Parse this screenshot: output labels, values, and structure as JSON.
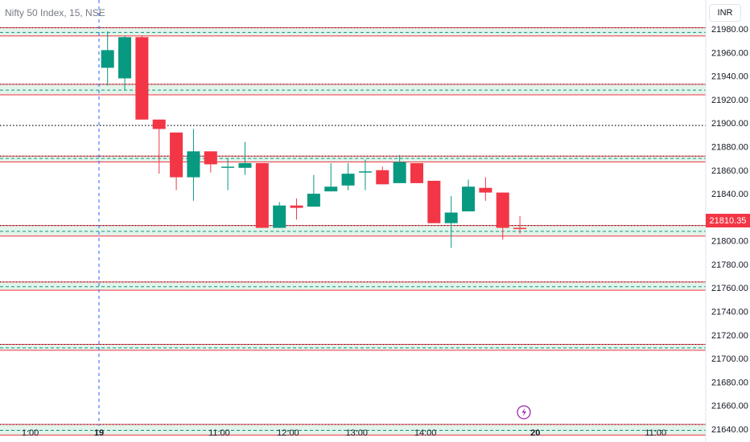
{
  "header": {
    "title": "Nifty 50 Index, 15, NSE",
    "currency_button": "INR"
  },
  "price_label": "21810.35",
  "colors": {
    "up": "#089981",
    "down": "#f23645",
    "zone_fill": "#e3f4ea",
    "zone_border": "#f23645",
    "midline": "#089981",
    "pivot_line": "#131722",
    "session_line": "#2962ff"
  },
  "events_icon": "lightning-icon",
  "chart_data": {
    "type": "candlestick",
    "title": "Nifty 50 Index, 15, NSE",
    "currency": "INR",
    "last_price": 21810.35,
    "ylim": [
      21630,
      21983
    ],
    "y_ticks": [
      21640,
      21660,
      21680,
      21700,
      21720,
      21740,
      21760,
      21780,
      21800,
      21820,
      21840,
      21860,
      21880,
      21900,
      21920,
      21940,
      21960,
      21980
    ],
    "x_ticks": [
      {
        "label": "1:00",
        "t": -4
      },
      {
        "label": "19",
        "t": 0,
        "bold": true
      },
      {
        "label": "11:00",
        "t": 7
      },
      {
        "label": "12:00",
        "t": 11
      },
      {
        "label": "13:00",
        "t": 15
      },
      {
        "label": "14:00",
        "t": 19
      },
      {
        "label": "20",
        "t": 25.4,
        "bold": true
      },
      {
        "label": "11:00",
        "t": 32.4
      }
    ],
    "session_break_t": 0,
    "candles": [
      {
        "t": 0.5,
        "o": 21947,
        "h": 21978,
        "l": 21932,
        "c": 21962
      },
      {
        "t": 1.5,
        "o": 21938,
        "h": 21974,
        "l": 21928,
        "c": 21973
      },
      {
        "t": 2.5,
        "o": 21973,
        "h": 21974,
        "l": 21903,
        "c": 21903
      },
      {
        "t": 3.5,
        "o": 21903,
        "h": 21903,
        "l": 21857,
        "c": 21895
      },
      {
        "t": 4.5,
        "o": 21892,
        "h": 21892,
        "l": 21843,
        "c": 21854
      },
      {
        "t": 5.5,
        "o": 21854,
        "h": 21895,
        "l": 21834,
        "c": 21876
      },
      {
        "t": 6.5,
        "o": 21876,
        "h": 21876,
        "l": 21858,
        "c": 21865
      },
      {
        "t": 7.5,
        "o": 21863,
        "h": 21870,
        "l": 21843,
        "c": 21863
      },
      {
        "t": 8.5,
        "o": 21862,
        "h": 21884,
        "l": 21856,
        "c": 21866
      },
      {
        "t": 9.5,
        "o": 21866,
        "h": 21866,
        "l": 21811,
        "c": 21811
      },
      {
        "t": 10.5,
        "o": 21811,
        "h": 21833,
        "l": 21811,
        "c": 21830
      },
      {
        "t": 11.5,
        "o": 21830,
        "h": 21836,
        "l": 21818,
        "c": 21828
      },
      {
        "t": 12.5,
        "o": 21829,
        "h": 21856,
        "l": 21829,
        "c": 21840
      },
      {
        "t": 13.5,
        "o": 21842,
        "h": 21866,
        "l": 21842,
        "c": 21846
      },
      {
        "t": 14.5,
        "o": 21847,
        "h": 21866,
        "l": 21843,
        "c": 21857
      },
      {
        "t": 15.5,
        "o": 21858,
        "h": 21869,
        "l": 21843,
        "c": 21859
      },
      {
        "t": 16.5,
        "o": 21860,
        "h": 21863,
        "l": 21848,
        "c": 21848
      },
      {
        "t": 17.5,
        "o": 21849,
        "h": 21873,
        "l": 21849,
        "c": 21867
      },
      {
        "t": 18.5,
        "o": 21866,
        "h": 21866,
        "l": 21849,
        "c": 21849
      },
      {
        "t": 19.5,
        "o": 21851,
        "h": 21851,
        "l": 21815,
        "c": 21815
      },
      {
        "t": 20.5,
        "o": 21815,
        "h": 21838,
        "l": 21794,
        "c": 21824
      },
      {
        "t": 21.5,
        "o": 21825,
        "h": 21852,
        "l": 21825,
        "c": 21846
      },
      {
        "t": 22.5,
        "o": 21845,
        "h": 21854,
        "l": 21834,
        "c": 21841
      },
      {
        "t": 23.5,
        "o": 21841,
        "h": 21841,
        "l": 21801,
        "c": 21811
      },
      {
        "t": 24.5,
        "o": 21811,
        "h": 21821,
        "l": 21806,
        "c": 21810.35
      }
    ],
    "zones": [
      {
        "top": 21981,
        "bottom": 21974,
        "mid": 21977
      },
      {
        "top": 21933,
        "bottom": 21924,
        "mid": 21928
      },
      {
        "top": 21872,
        "bottom": 21867,
        "mid": 21870
      },
      {
        "top": 21813,
        "bottom": 21804,
        "mid": 21808
      },
      {
        "top": 21765,
        "bottom": 21758,
        "mid": 21761
      },
      {
        "top": 21712,
        "bottom": 21707,
        "mid": 21709
      },
      {
        "top": 21644,
        "bottom": 21635,
        "mid": 21639
      }
    ],
    "pivot_lines": [
      21898
    ]
  }
}
